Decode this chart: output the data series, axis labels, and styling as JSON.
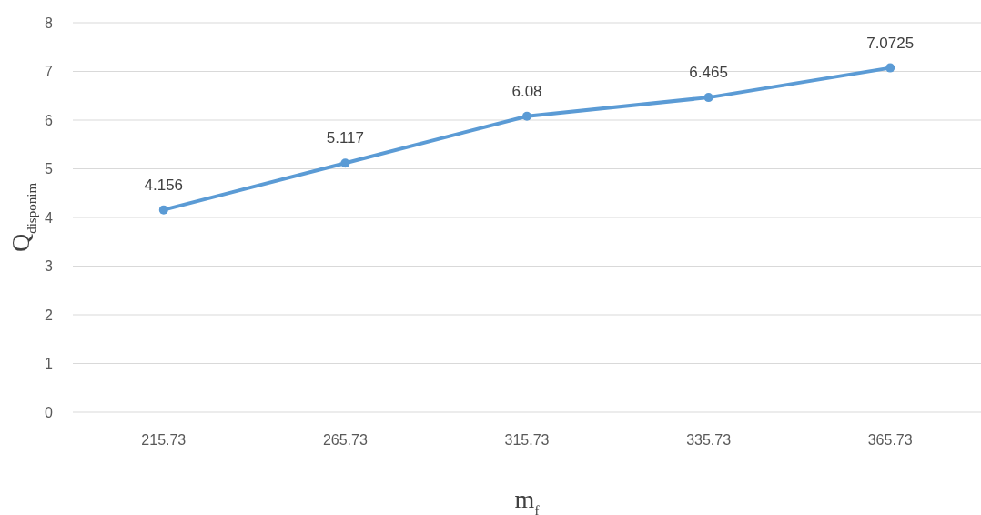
{
  "chart_data": {
    "type": "line",
    "xlabel": "m$_{f}$",
    "ylabel": "Q$_{disponim}$",
    "categories": [
      "215.73",
      "265.73",
      "315.73",
      "335.73",
      "365.73"
    ],
    "series": [
      {
        "color": "#5b9bd5",
        "values": [
          4.156,
          5.117,
          6.08,
          6.465,
          7.0725
        ]
      }
    ],
    "ylim": [
      0,
      8
    ],
    "yticks": [
      0,
      1,
      2,
      3,
      4,
      5,
      6,
      7,
      8
    ],
    "grid": "y",
    "marker": "circle",
    "line_style": "solid",
    "data_labels": true
  }
}
